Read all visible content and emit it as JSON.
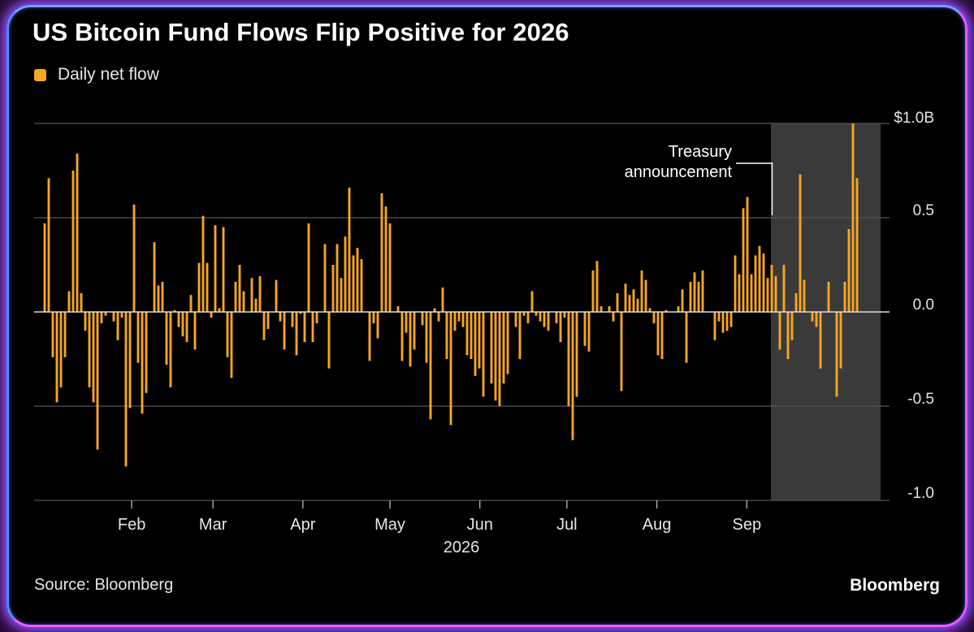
{
  "title": "US Bitcoin Fund Flows Flip Positive for 2026",
  "legend": {
    "label": "Daily net flow",
    "color": "#f5a623"
  },
  "source": "Source: Bloomberg",
  "brand": "Bloomberg",
  "colors": {
    "bar": "#f5a623",
    "highlight": "#3a3a3a",
    "grid": "#555555",
    "zero": "#dddddd",
    "text": "#e6e6e6"
  },
  "chart_data": {
    "type": "bar",
    "title": "US Bitcoin Fund Flows Flip Positive for 2026",
    "xlabel": "2026",
    "ylabel": "",
    "ylim": [
      -1.0,
      1.0
    ],
    "ytick_labels": [
      "$1.0B",
      "0.5",
      "0.0",
      "-0.5",
      "-1.0"
    ],
    "yticks": [
      1.0,
      0.5,
      0.0,
      -0.5,
      -1.0
    ],
    "axis_position": "right",
    "grid": true,
    "legend_position": "top-left",
    "x_start": "2026-01-02",
    "month_ticks": [
      {
        "label": "Feb",
        "date": "2026-02-01"
      },
      {
        "label": "Mar",
        "date": "2026-03-01"
      },
      {
        "label": "Apr",
        "date": "2026-04-01"
      },
      {
        "label": "May",
        "date": "2026-05-01"
      },
      {
        "label": "Jun",
        "date": "2026-06-01"
      },
      {
        "label": "Jul",
        "date": "2026-07-01"
      },
      {
        "label": "Aug",
        "date": "2026-08-01"
      },
      {
        "label": "Sep",
        "date": "2026-09-01"
      }
    ],
    "highlight_range": [
      "2026-08-18",
      "2026-09-24"
    ],
    "annotation": {
      "text_lines": [
        "Treasury",
        "announcement"
      ],
      "date": "2026-08-18",
      "value": 0.5
    },
    "series": [
      {
        "name": "Daily net flow",
        "values": [
          0.47,
          0.71,
          -0.24,
          -0.48,
          -0.4,
          -0.24,
          0.11,
          0.75,
          0.84,
          0.1,
          -0.1,
          -0.4,
          -0.48,
          -0.73,
          -0.06,
          -0.02,
          0.0,
          -0.05,
          -0.15,
          -0.03,
          -0.82,
          -0.51,
          0.57,
          -0.27,
          -0.54,
          -0.43,
          0.0,
          0.37,
          0.14,
          0.16,
          -0.28,
          -0.4,
          0.01,
          -0.08,
          -0.13,
          -0.16,
          0.09,
          -0.2,
          0.26,
          0.51,
          0.26,
          -0.03,
          0.46,
          0.02,
          0.45,
          -0.24,
          -0.35,
          0.16,
          0.25,
          0.11,
          0.0,
          0.18,
          0.07,
          0.19,
          -0.15,
          -0.09,
          0.0,
          0.17,
          -0.05,
          -0.2,
          0.0,
          -0.08,
          -0.23,
          -0.01,
          -0.16,
          0.47,
          -0.16,
          -0.06,
          0.0,
          0.36,
          -0.3,
          0.25,
          0.36,
          0.18,
          0.4,
          0.66,
          0.3,
          0.34,
          0.28,
          0.0,
          -0.26,
          -0.06,
          -0.14,
          0.63,
          0.56,
          0.47,
          0.0,
          0.03,
          -0.26,
          -0.11,
          -0.29,
          -0.2,
          0.0,
          -0.07,
          -0.27,
          -0.57,
          0.02,
          -0.05,
          0.13,
          -0.25,
          -0.6,
          -0.1,
          -0.05,
          -0.08,
          -0.23,
          -0.25,
          -0.34,
          -0.3,
          -0.45,
          0.0,
          -0.38,
          -0.47,
          -0.5,
          -0.38,
          -0.33,
          0.0,
          -0.08,
          -0.25,
          -0.02,
          -0.06,
          0.11,
          -0.02,
          -0.05,
          -0.08,
          -0.1,
          0.0,
          -0.06,
          -0.16,
          -0.03,
          -0.5,
          -0.68,
          -0.45,
          0.0,
          -0.18,
          -0.21,
          0.22,
          0.27,
          0.03,
          0.0,
          0.03,
          -0.05,
          0.1,
          -0.42,
          0.15,
          0.09,
          0.12,
          0.07,
          0.22,
          0.17,
          0.02,
          -0.06,
          -0.23,
          -0.25,
          0.01,
          0.0,
          0.0,
          0.03,
          0.12,
          -0.27,
          0.16,
          0.21,
          0.16,
          0.22,
          0.0,
          0.0,
          -0.15,
          -0.05,
          -0.11,
          -0.1,
          -0.08,
          0.3,
          0.2,
          0.55,
          0.61,
          0.2,
          0.3,
          0.35,
          0.31,
          0.18,
          0.25,
          0.19,
          -0.2,
          0.25,
          -0.25,
          -0.15,
          0.1,
          0.73,
          0.17,
          0.0,
          -0.05,
          -0.08,
          -0.3,
          0.0,
          0.16,
          0.0,
          -0.45,
          -0.3,
          0.16,
          0.44,
          1.0,
          0.71
        ]
      }
    ]
  }
}
